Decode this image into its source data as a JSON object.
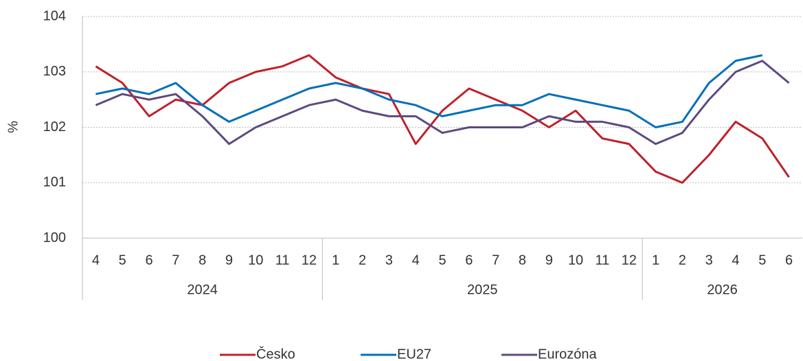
{
  "chart_data": {
    "type": "line",
    "y_label": "%",
    "categories": [
      "4",
      "5",
      "6",
      "7",
      "8",
      "9",
      "10",
      "11",
      "12",
      "1",
      "2",
      "3",
      "4",
      "5",
      "6",
      "7",
      "8",
      "9",
      "10",
      "11",
      "12",
      "1",
      "2",
      "3",
      "4",
      "5",
      "6"
    ],
    "year_groups": [
      "2024",
      "2025",
      "2026"
    ],
    "series": [
      {
        "name": "Česko",
        "color": "#c0202a",
        "values": [
          103.1,
          102.8,
          102.2,
          102.5,
          102.4,
          102.8,
          103.0,
          103.1,
          103.3,
          102.9,
          102.7,
          102.6,
          101.7,
          102.3,
          102.7,
          102.5,
          102.3,
          102.0,
          102.3,
          101.8,
          101.7,
          101.2,
          101.0,
          101.5,
          102.1,
          101.8,
          101.1
        ]
      },
      {
        "name": "EU27",
        "color": "#0070b8",
        "values": [
          102.6,
          102.7,
          102.6,
          102.8,
          102.4,
          102.1,
          102.3,
          102.5,
          102.7,
          102.8,
          102.7,
          102.5,
          102.4,
          102.2,
          102.3,
          102.4,
          102.4,
          102.6,
          102.5,
          102.4,
          102.3,
          102.0,
          102.1,
          102.8,
          103.2,
          103.3,
          null
        ]
      },
      {
        "name": "Eurozóna",
        "color": "#5c4a7f",
        "values": [
          102.4,
          102.6,
          102.5,
          102.6,
          102.2,
          101.7,
          102.0,
          102.2,
          102.4,
          102.5,
          102.3,
          102.2,
          102.2,
          101.9,
          102.0,
          102.0,
          102.0,
          102.2,
          102.1,
          102.1,
          102.0,
          101.7,
          101.9,
          102.5,
          103.0,
          103.2,
          102.8
        ]
      }
    ],
    "ylim": [
      100,
      104
    ],
    "yticks": [
      100,
      101,
      102,
      103,
      104
    ],
    "grid": true,
    "legend": "bottom"
  }
}
